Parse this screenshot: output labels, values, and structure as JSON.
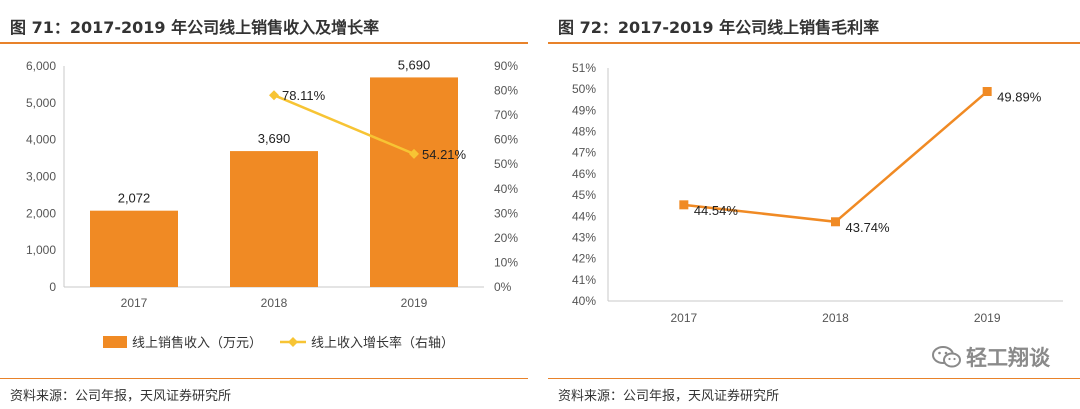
{
  "left": {
    "title": "图 71：2017-2019 年公司线上销售收入及增长率",
    "source": "资料来源：公司年报，天风证券研究所",
    "chart_data": {
      "type": "bar",
      "categories": [
        "2017",
        "2018",
        "2019"
      ],
      "series": [
        {
          "name": "线上销售收入（万元）",
          "type": "bar",
          "axis": "left",
          "values": [
            2072,
            3690,
            5690
          ],
          "labels": [
            "2,072",
            "3,690",
            "5,690"
          ],
          "color": "#f08a24"
        },
        {
          "name": "线上收入增长率（右轴）",
          "type": "line",
          "axis": "right",
          "values": [
            null,
            78.11,
            54.21
          ],
          "labels": [
            null,
            "78.11%",
            "54.21%"
          ],
          "color": "#f7c434"
        }
      ],
      "ylim": [
        0,
        6000
      ],
      "y_ticks": [
        "0",
        "1,000",
        "2,000",
        "3,000",
        "4,000",
        "5,000",
        "6,000"
      ],
      "y2lim": [
        0,
        90
      ],
      "y2_ticks": [
        "0%",
        "10%",
        "20%",
        "30%",
        "40%",
        "50%",
        "60%",
        "70%",
        "80%",
        "90%"
      ],
      "legend_position": "bottom",
      "grid": false
    }
  },
  "right": {
    "title": "图 72：2017-2019 年公司线上销售毛利率",
    "source": "资料来源：公司年报，天风证券研究所",
    "chart_data": {
      "type": "line",
      "categories": [
        "2017",
        "2018",
        "2019"
      ],
      "series": [
        {
          "values": [
            44.54,
            43.74,
            49.89
          ],
          "labels": [
            "44.54%",
            "43.74%",
            "49.89%"
          ],
          "color": "#f08a24"
        }
      ],
      "ylim": [
        40,
        51
      ],
      "y_ticks": [
        "40%",
        "41%",
        "42%",
        "43%",
        "44%",
        "45%",
        "46%",
        "47%",
        "48%",
        "49%",
        "50%",
        "51%"
      ],
      "grid": false
    }
  },
  "watermark": {
    "text": "轻工翔谈",
    "icon": "wechat-icon"
  }
}
